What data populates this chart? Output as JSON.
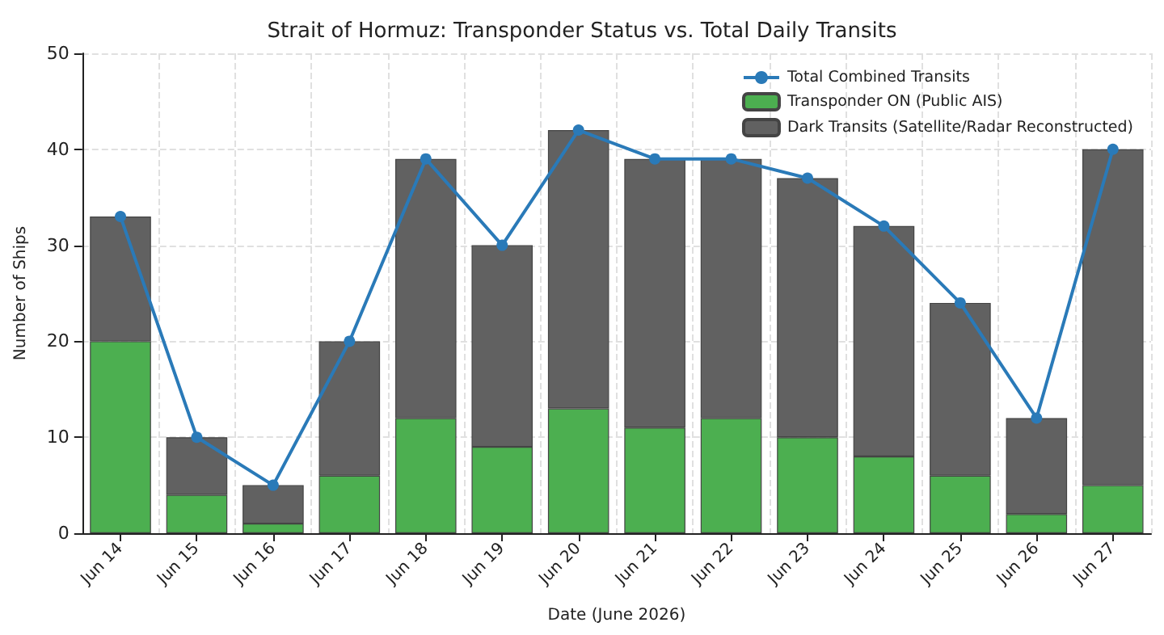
{
  "chart_data": {
    "type": "bar",
    "title": "Strait of Hormuz: Transponder Status vs. Total Daily Transits",
    "xlabel": "Date (June 2026)",
    "ylabel": "Number of Ships",
    "categories": [
      "Jun 14",
      "Jun 15",
      "Jun 16",
      "Jun 17",
      "Jun 18",
      "Jun 19",
      "Jun 20",
      "Jun 21",
      "Jun 22",
      "Jun 23",
      "Jun 24",
      "Jun 25",
      "Jun 26",
      "Jun 27"
    ],
    "stacked": true,
    "series": [
      {
        "name": "Transponder ON (Public AIS)",
        "color": "#4caf50",
        "values": [
          20,
          4,
          1,
          6,
          12,
          9,
          13,
          11,
          12,
          10,
          8,
          6,
          2,
          5
        ]
      },
      {
        "name": "Dark Transits (Satellite/Radar Reconstructed)",
        "color": "#616161",
        "values": [
          13,
          6,
          4,
          14,
          27,
          21,
          29,
          28,
          27,
          27,
          24,
          18,
          10,
          35
        ]
      },
      {
        "name": "Total Combined Transits",
        "type": "line",
        "color": "#2a7ab8",
        "marker": "circle",
        "line_style": "solid",
        "values": [
          33,
          10,
          5,
          20,
          39,
          30,
          42,
          39,
          39,
          37,
          32,
          24,
          12,
          40
        ]
      }
    ],
    "ylim": [
      0,
      50
    ],
    "yticks": [
      0,
      10,
      20,
      30,
      40,
      50
    ],
    "grid": true,
    "legend": "top right"
  }
}
